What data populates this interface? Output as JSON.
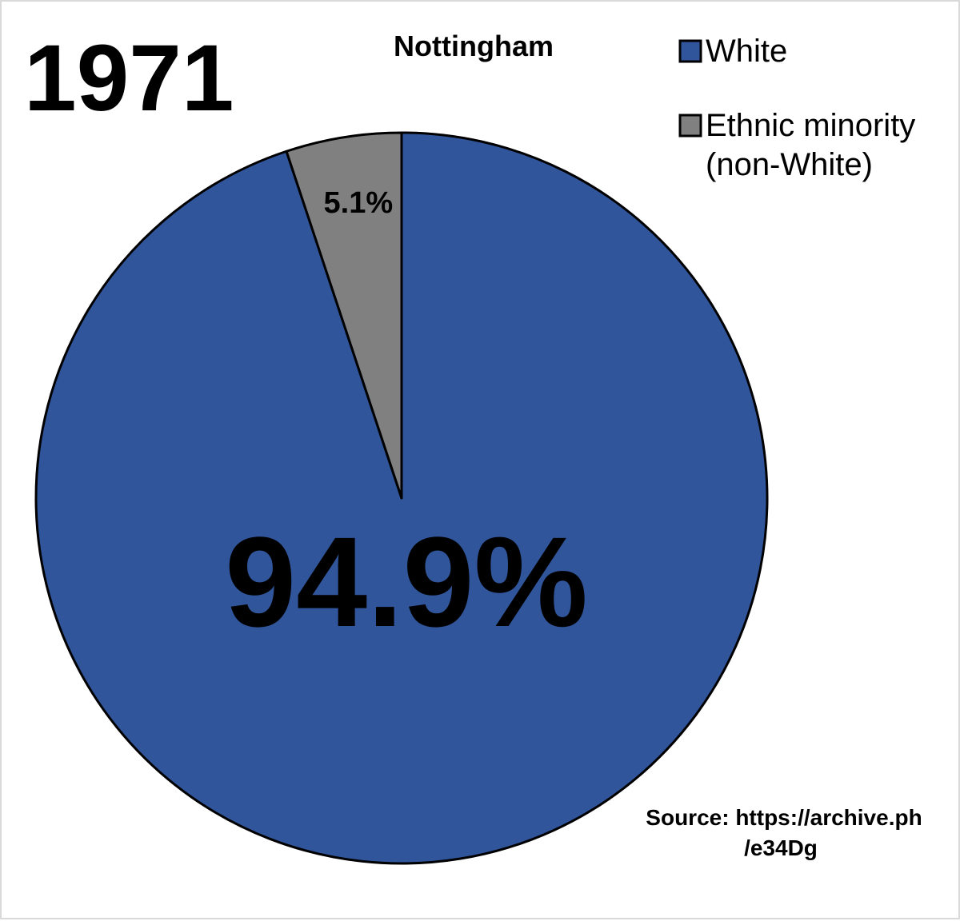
{
  "chart_data": {
    "type": "pie",
    "year_label": "1971",
    "title": "Nottingham",
    "slices": [
      {
        "name": "White",
        "value": 94.9,
        "label": "94.9%",
        "color": "#30559a"
      },
      {
        "name": "Ethnic minority (non-White)",
        "value": 5.1,
        "label": "5.1%",
        "color": "#808080"
      }
    ],
    "legend": {
      "placement": "top-right",
      "entries": [
        {
          "lines": [
            "White"
          ],
          "color": "#30559a"
        },
        {
          "lines": [
            "Ethnic minority",
            "(non-White)"
          ],
          "color": "#808080"
        }
      ]
    },
    "source_lines": [
      "Source: https://archive.ph",
      "/e34Dg"
    ]
  }
}
